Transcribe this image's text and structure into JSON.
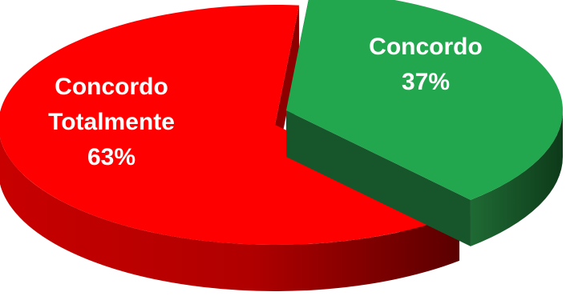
{
  "chart_data": {
    "type": "pie",
    "style": "3d-exploded",
    "title": "",
    "slices": [
      {
        "name": "Concordo Totalmente",
        "label_lines": [
          "Concordo",
          "Totalmente",
          "63%"
        ],
        "value": 63,
        "percent_label": "63%",
        "color": "#ff0000"
      },
      {
        "name": "Concordo",
        "label_lines": [
          "Concordo",
          "37%"
        ],
        "value": 37,
        "percent_label": "37%",
        "color": "#22a74f"
      }
    ],
    "legend": "none"
  }
}
